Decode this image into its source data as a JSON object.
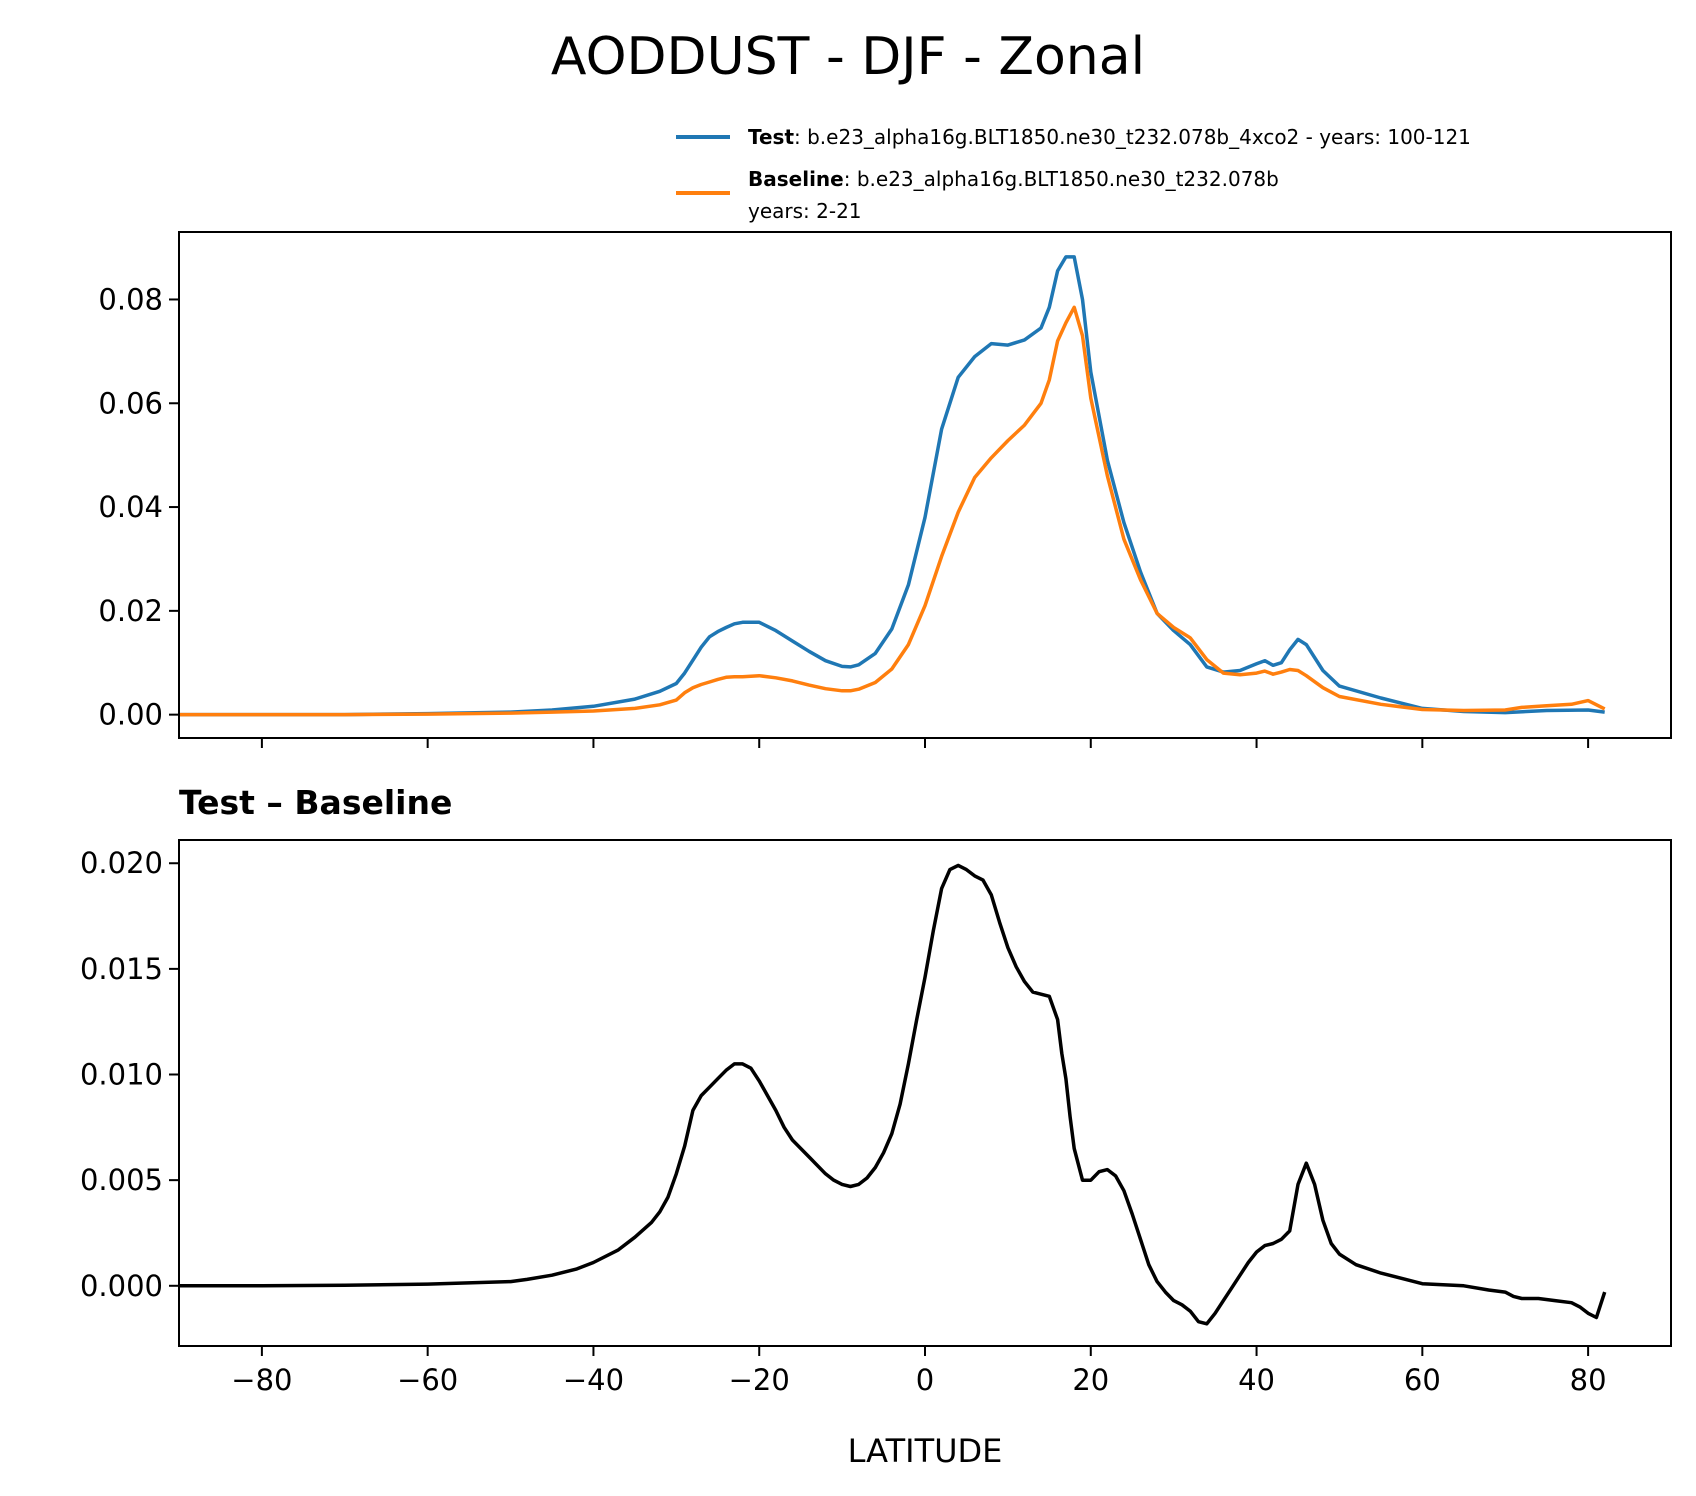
{
  "title": "AODDUST - DJF - Zonal",
  "chart_data": [
    {
      "type": "line",
      "xlim": [
        -90,
        90
      ],
      "ylim": [
        -0.0045,
        0.093
      ],
      "yticks": [
        "0.00",
        "0.02",
        "0.04",
        "0.06",
        "0.08"
      ],
      "legend": {
        "placement": "above-right",
        "entries": [
          {
            "name": "Test",
            "desc": ": b.e23_alpha16g.BLT1850.ne30_t232.078b_4xco2 - years: 100-121",
            "desc2": "",
            "color": "#1f77b4"
          },
          {
            "name": "Baseline",
            "desc": ": b.e23_alpha16g.BLT1850.ne30_t232.078b",
            "desc2": "years: 2-21",
            "color": "#ff7f0e"
          }
        ]
      },
      "series": [
        {
          "name": "Test",
          "color": "#1f77b4",
          "x": [
            -90,
            -80,
            -70,
            -60,
            -50,
            -45,
            -40,
            -35,
            -32,
            -30,
            -29,
            -28,
            -27,
            -26,
            -25,
            -24,
            -23,
            -22,
            -20,
            -18,
            -16,
            -14,
            -12,
            -10,
            -9,
            -8,
            -6,
            -4,
            -2,
            0,
            2,
            4,
            6,
            8,
            10,
            12,
            14,
            15,
            16,
            17,
            18,
            19,
            20,
            22,
            24,
            26,
            28,
            30,
            32,
            34,
            36,
            38,
            40,
            41,
            42,
            43,
            44,
            45,
            46,
            48,
            50,
            55,
            60,
            65,
            70,
            75,
            80,
            82
          ],
          "y": [
            0.0,
            0.0,
            0.0,
            0.0002,
            0.0005,
            0.0009,
            0.0016,
            0.003,
            0.0045,
            0.006,
            0.008,
            0.0105,
            0.013,
            0.015,
            0.016,
            0.0168,
            0.0175,
            0.0178,
            0.0178,
            0.0162,
            0.0142,
            0.0122,
            0.0104,
            0.0093,
            0.0092,
            0.0096,
            0.0118,
            0.0165,
            0.025,
            0.038,
            0.055,
            0.065,
            0.069,
            0.0715,
            0.0712,
            0.0722,
            0.0745,
            0.0785,
            0.0855,
            0.0882,
            0.0882,
            0.08,
            0.066,
            0.049,
            0.037,
            0.0275,
            0.0195,
            0.0162,
            0.0135,
            0.0092,
            0.0082,
            0.0085,
            0.0098,
            0.0104,
            0.0095,
            0.01,
            0.0125,
            0.0145,
            0.0135,
            0.0085,
            0.0055,
            0.0032,
            0.0012,
            0.0006,
            0.0004,
            0.0008,
            0.0009,
            0.0005
          ]
        },
        {
          "name": "Baseline",
          "color": "#ff7f0e",
          "x": [
            -90,
            -80,
            -70,
            -60,
            -50,
            -45,
            -40,
            -35,
            -32,
            -30,
            -29,
            -28,
            -27,
            -26,
            -25,
            -24,
            -23,
            -22,
            -20,
            -18,
            -16,
            -14,
            -12,
            -10,
            -9,
            -8,
            -6,
            -4,
            -2,
            0,
            2,
            4,
            6,
            8,
            10,
            12,
            14,
            15,
            16,
            17,
            18,
            19,
            20,
            22,
            24,
            26,
            28,
            30,
            32,
            34,
            36,
            38,
            40,
            41,
            42,
            43,
            44,
            45,
            46,
            48,
            50,
            55,
            60,
            65,
            70,
            72,
            75,
            78,
            80,
            82
          ],
          "y": [
            0.0,
            0.0,
            0.0,
            0.0001,
            0.0003,
            0.0005,
            0.0007,
            0.0012,
            0.0019,
            0.0028,
            0.0042,
            0.0052,
            0.0058,
            0.0063,
            0.0068,
            0.0072,
            0.0073,
            0.0073,
            0.0075,
            0.0071,
            0.0065,
            0.0057,
            0.005,
            0.0046,
            0.0046,
            0.0049,
            0.0062,
            0.0088,
            0.0135,
            0.021,
            0.0305,
            0.039,
            0.0457,
            0.0495,
            0.0528,
            0.0558,
            0.06,
            0.0645,
            0.072,
            0.0755,
            0.0785,
            0.073,
            0.061,
            0.046,
            0.0338,
            0.026,
            0.0195,
            0.0168,
            0.0148,
            0.0106,
            0.008,
            0.0077,
            0.008,
            0.0084,
            0.0078,
            0.0082,
            0.0087,
            0.0085,
            0.0075,
            0.0052,
            0.0035,
            0.002,
            0.001,
            0.0008,
            0.0009,
            0.0014,
            0.0017,
            0.002,
            0.0027,
            0.0011
          ]
        }
      ]
    },
    {
      "type": "line",
      "title": "Test – Baseline",
      "xlabel": "LATITUDE",
      "xlim": [
        -90,
        90
      ],
      "ylim": [
        -0.00285,
        0.0211
      ],
      "xticks": [
        "−80",
        "−60",
        "−40",
        "−20",
        "0",
        "20",
        "40",
        "60",
        "80"
      ],
      "yticks": [
        "0.000",
        "0.005",
        "0.010",
        "0.015",
        "0.020"
      ],
      "series": [
        {
          "name": "",
          "color": "#000000",
          "x": [
            -90,
            -80,
            -70,
            -60,
            -50,
            -48,
            -45,
            -42,
            -40,
            -37,
            -35,
            -33,
            -32,
            -31,
            -30,
            -29,
            -28,
            -27,
            -26,
            -25,
            -24,
            -23,
            -22,
            -21,
            -20,
            -19,
            -18,
            -17,
            -16,
            -14,
            -12,
            -11,
            -10,
            -9,
            -8,
            -7,
            -6,
            -5,
            -4,
            -3,
            -2,
            -1,
            0,
            1,
            2,
            3,
            4,
            5,
            6,
            7,
            8,
            9,
            10,
            11,
            12,
            13,
            14,
            15,
            16,
            16.5,
            17,
            17.5,
            18,
            19,
            20,
            21,
            22,
            23,
            24,
            25,
            26,
            27,
            28,
            29,
            30,
            31,
            32,
            33,
            34,
            35,
            36,
            37,
            38,
            39,
            40,
            41,
            42,
            43,
            44,
            45,
            46,
            47,
            48,
            49,
            50,
            52,
            55,
            58,
            60,
            65,
            68,
            70,
            71,
            72,
            74,
            76,
            78,
            79,
            80,
            81,
            82
          ],
          "y": [
            0.0,
            0.0,
            3e-05,
            8e-05,
            0.0002,
            0.0003,
            0.0005,
            0.0008,
            0.0011,
            0.0017,
            0.0023,
            0.003,
            0.0035,
            0.0042,
            0.0053,
            0.0066,
            0.0083,
            0.009,
            0.0094,
            0.0098,
            0.0102,
            0.0105,
            0.0105,
            0.0103,
            0.0097,
            0.009,
            0.0083,
            0.0075,
            0.0069,
            0.0061,
            0.0053,
            0.005,
            0.0048,
            0.0047,
            0.0048,
            0.0051,
            0.0056,
            0.0063,
            0.0072,
            0.0086,
            0.0105,
            0.0126,
            0.0146,
            0.0168,
            0.0188,
            0.0197,
            0.0199,
            0.0197,
            0.0194,
            0.0192,
            0.0185,
            0.0172,
            0.016,
            0.0151,
            0.0144,
            0.0139,
            0.0138,
            0.0137,
            0.0126,
            0.011,
            0.0098,
            0.008,
            0.0065,
            0.005,
            0.005,
            0.0054,
            0.0055,
            0.0052,
            0.0045,
            0.0034,
            0.0022,
            0.001,
            0.0002,
            -0.0003,
            -0.0007,
            -0.0009,
            -0.0012,
            -0.0017,
            -0.0018,
            -0.0013,
            -0.0007,
            -0.0001,
            0.0005,
            0.0011,
            0.0016,
            0.0019,
            0.002,
            0.0022,
            0.0026,
            0.0048,
            0.0058,
            0.0048,
            0.0031,
            0.002,
            0.0015,
            0.001,
            0.0006,
            0.0003,
            0.0001,
            0.0,
            -0.0002,
            -0.0003,
            -0.0005,
            -0.0006,
            -0.0006,
            -0.0007,
            -0.0008,
            -0.001,
            -0.0013,
            -0.0015,
            -0.0003
          ]
        }
      ]
    }
  ]
}
